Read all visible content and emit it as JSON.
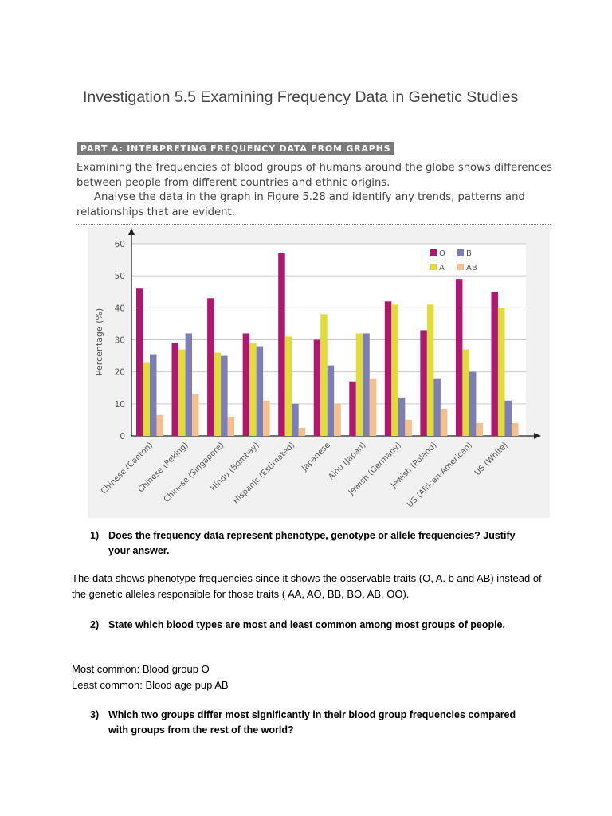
{
  "title": "Investigation 5.5 Examining Frequency Data in Genetic Studies",
  "part_a": {
    "heading": "PART A: INTERPRETING FREQUENCY DATA FROM GRAPHS",
    "paragraphs": [
      "Examining the frequencies of blood groups of humans around the globe shows differences between people from different countries and ethnic origins.",
      "Analyse the data in the graph in Figure 5.28 and identify any trends, patterns and relationships that are evident."
    ]
  },
  "chart_data": {
    "type": "bar",
    "y_label": "Percentage (%)",
    "categories": [
      "Chinese (Canton)",
      "Chinese (Peking)",
      "Chinese (Singapore)",
      "Hindu (Bombay)",
      "Hispanic (Estimated)",
      "Japanese",
      "Ainu (Japan)",
      "Jewish (Germany)",
      "Jewish (Poland)",
      "US (African-American)",
      "US (White)"
    ],
    "series": [
      {
        "name": "O",
        "color": "#b0176e",
        "values": [
          46,
          29,
          43,
          32,
          57,
          30,
          17,
          42,
          33,
          49,
          45
        ]
      },
      {
        "name": "A",
        "color": "#e0dc3a",
        "values": [
          23,
          27,
          26,
          29,
          31,
          38,
          32,
          41,
          41,
          27,
          40
        ]
      },
      {
        "name": "B",
        "color": "#7b7fb6",
        "values": [
          25.5,
          32,
          25,
          28,
          10,
          22,
          32,
          12,
          18,
          20,
          11
        ]
      },
      {
        "name": "AB",
        "color": "#f6c08e",
        "values": [
          6.5,
          13,
          6,
          11,
          2.5,
          10,
          18,
          5,
          8.5,
          4,
          4
        ]
      }
    ],
    "ylim": [
      0,
      60
    ],
    "yticks": [
      0,
      10,
      20,
      30,
      40,
      50,
      60
    ],
    "grid": true,
    "legend": "top-right"
  },
  "questions": [
    {
      "number": "1)",
      "text": "Does the frequency data represent phenotype, genotype or allele frequencies? Justify your answer.",
      "answer": [
        "The data shows phenotype frequencies since it shows the observable traits (O, A. b and AB) instead of the genetic alleles responsible for those traits ( AA, AO, BB, BO, AB, OO)."
      ]
    },
    {
      "number": "2)",
      "text": "State which blood types are most and least common among most groups of people.",
      "answer": [
        "Most common: Blood group O",
        "Least common: Blood age pup AB"
      ]
    },
    {
      "number": "3)",
      "text": "Which two groups differ most significantly in their blood group frequencies compared with groups from the rest of the world?",
      "answer": []
    }
  ]
}
